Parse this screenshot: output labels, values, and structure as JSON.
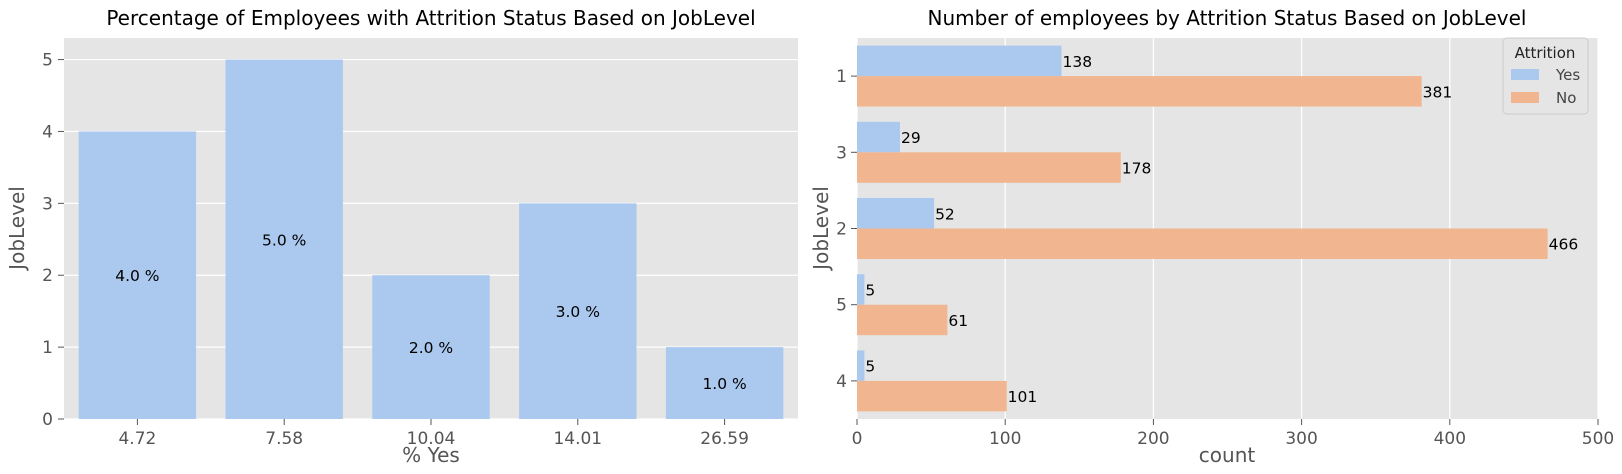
{
  "chart_data": [
    {
      "type": "bar",
      "title": "Percentage of Employees with Attrition Status Based on JobLevel",
      "xlabel": "% Yes",
      "ylabel": "JobLevel",
      "categories": [
        "4.72",
        "7.58",
        "10.04",
        "14.01",
        "26.59"
      ],
      "values": [
        4,
        5,
        2,
        3,
        1
      ],
      "data_labels": [
        "4.0 %",
        "5.0 %",
        "2.0 %",
        "3.0 %",
        "1.0 %"
      ],
      "ylim": [
        0,
        5.3
      ],
      "yticks": [
        0,
        1,
        2,
        3,
        4,
        5
      ],
      "grid": true,
      "color": "#abc9ef"
    },
    {
      "type": "bar",
      "orientation": "horizontal",
      "title": "Number of employees by Attrition Status Based on JobLevel",
      "xlabel": "count",
      "ylabel": "JobLevel",
      "categories": [
        "1",
        "3",
        "2",
        "5",
        "4"
      ],
      "series": [
        {
          "name": "Yes",
          "values": [
            138,
            29,
            52,
            5,
            5
          ],
          "color": "#abc9ef"
        },
        {
          "name": "No",
          "values": [
            381,
            178,
            466,
            61,
            101
          ],
          "color": "#f1b68f"
        }
      ],
      "xlim": [
        0,
        500
      ],
      "xticks": [
        0,
        100,
        200,
        300,
        400,
        500
      ],
      "legend_title": "Attrition",
      "legend_position": "top-right",
      "grid": true
    }
  ]
}
